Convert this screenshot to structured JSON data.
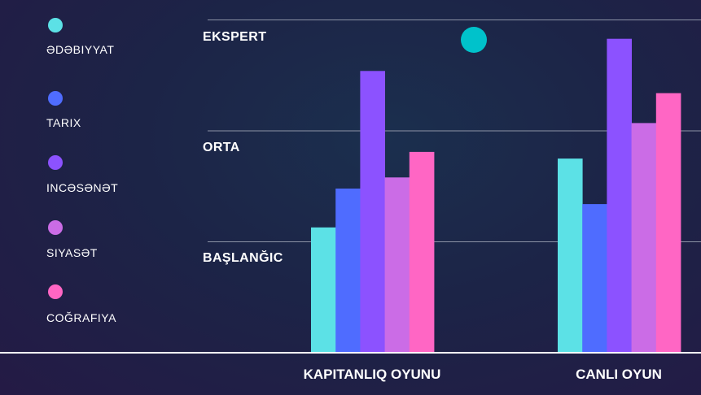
{
  "chart_data": {
    "type": "bar",
    "title": "",
    "xlabel": "",
    "ylabel": "",
    "categories": [
      "KAPITANLIQ OYUNU",
      "CANLI OYUN"
    ],
    "levels": [
      "EKSPERT",
      "ORTA",
      "BAŞLANĞIC"
    ],
    "level_values": [
      3,
      2,
      1
    ],
    "ylim": [
      0,
      3.3
    ],
    "series": [
      {
        "name": "ƏDƏBIYYAT",
        "color": "#5ce1e6",
        "values": [
          1.13,
          1.75
        ]
      },
      {
        "name": "TARIX",
        "color": "#4f6cff",
        "values": [
          1.48,
          1.34
        ]
      },
      {
        "name": "INCƏSƏNƏT",
        "color": "#8c52ff",
        "values": [
          2.54,
          2.83
        ]
      },
      {
        "name": "SIYASƏT",
        "color": "#cb6ce6",
        "values": [
          1.58,
          2.07
        ]
      },
      {
        "name": "COĞRAFIYA",
        "color": "#ff66c4",
        "values": [
          1.81,
          2.34
        ]
      }
    ],
    "grid": true,
    "legend_position": "left",
    "marker_color": "#00c2cb"
  }
}
